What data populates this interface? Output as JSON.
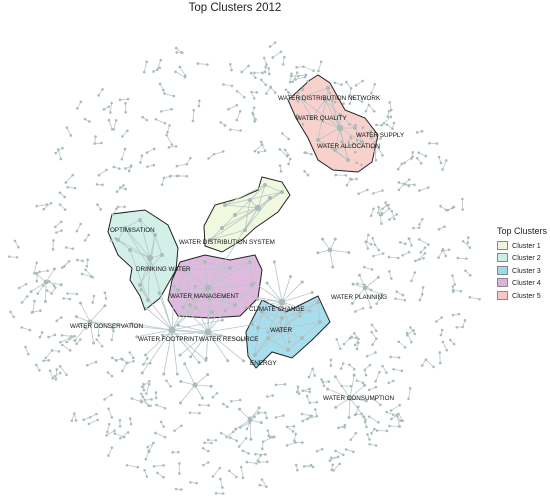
{
  "title": "Top Clusters 2012",
  "legend": {
    "title": "Top Clusters",
    "items": [
      {
        "label": "Cluster 1",
        "color": "#eef7dc"
      },
      {
        "label": "Cluster 2",
        "color": "#cdeee6"
      },
      {
        "label": "Cluster 3",
        "color": "#9fd9ec"
      },
      {
        "label": "Cluster 4",
        "color": "#dcb2dc"
      },
      {
        "label": "Cluster 5",
        "color": "#f8c9c3"
      }
    ]
  },
  "labels": {
    "water_distribution_network": "WATER DISTRIBUTION NETWORK",
    "water_quality": "WATER QUALITY",
    "water_supply": "WATER SUPPLY",
    "water_allocation": "WATER ALLOCATION",
    "optimisation": "OPTIMISATION",
    "water_distribution_system": "WATER DISTRIBUTION SYSTEM",
    "drinking_water": "DRINKING WATER",
    "water_management": "WATER MANAGEMENT",
    "climate_change": "CLIMATE CHANGE",
    "water_planning": "WATER PLANNING",
    "water_conservation": "WATER CONSERVATION",
    "water_footprint": "WATER FOOTPRINT",
    "water_resource": "WATER RESOURCE",
    "water": "WATER",
    "energy": "ENERGY",
    "water_consumption": "WATER CONSUMPTION"
  }
}
